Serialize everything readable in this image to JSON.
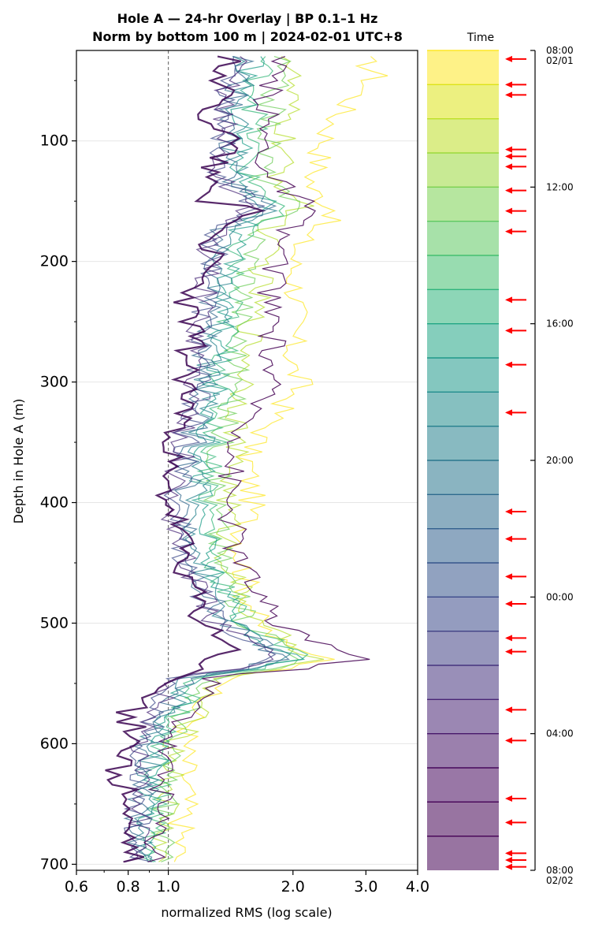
{
  "chart_data": {
    "type": "line",
    "title": "Hole A — 24-hr Overlay  |  BP 0.1–1 Hz",
    "subtitle": "Norm by bottom 100 m  |  2024-02-01 UTC+8",
    "xlabel": "normalized RMS  (log scale)",
    "ylabel": "Depth in Hole A (m)",
    "xscale": "log",
    "xlim": [
      0.6,
      4.0
    ],
    "ylim": [
      705,
      25
    ],
    "xticks": [
      "0.6",
      "0.8",
      "1.0",
      "2.0",
      "3.0",
      "4.0"
    ],
    "yticks": [
      "100",
      "200",
      "300",
      "400",
      "500",
      "600",
      "700"
    ],
    "grid": "horizontal",
    "reference_line_x": 1.0,
    "colorbar": {
      "label": "Time",
      "colormap": "viridis",
      "ticks": [
        {
          "label": "08:00",
          "label2": "02/01"
        },
        {
          "label": "12:00"
        },
        {
          "label": "16:00"
        },
        {
          "label": "20:00"
        },
        {
          "label": "00:00"
        },
        {
          "label": "04:00"
        },
        {
          "label": "08:00",
          "label2": "02/02"
        }
      ],
      "bands": 24,
      "arrow_hours": [
        0.25,
        1.0,
        1.3,
        2.9,
        3.1,
        3.4,
        4.1,
        4.7,
        5.3,
        7.3,
        8.2,
        9.2,
        10.6,
        13.5,
        14.3,
        15.4,
        16.2,
        17.2,
        17.6,
        19.3,
        20.2,
        21.9,
        22.6,
        23.5,
        23.7,
        23.9
      ]
    },
    "series": [
      {
        "name": "",
        "color": "#fde725",
        "profile": [
          [
            30,
            2.9
          ],
          [
            45,
            3.2
          ],
          [
            60,
            2.9
          ],
          [
            80,
            2.55
          ],
          [
            100,
            2.4
          ],
          [
            120,
            2.3
          ],
          [
            140,
            2.2
          ],
          [
            160,
            2.6
          ],
          [
            175,
            2.15
          ],
          [
            200,
            2.0
          ],
          [
            230,
            2.05
          ],
          [
            260,
            2.0
          ],
          [
            290,
            2.0
          ],
          [
            300,
            2.1
          ],
          [
            330,
            1.8
          ],
          [
            360,
            1.55
          ],
          [
            400,
            1.6
          ],
          [
            440,
            1.5
          ],
          [
            470,
            1.55
          ],
          [
            500,
            1.65
          ],
          [
            520,
            1.9
          ],
          [
            530,
            2.6
          ],
          [
            540,
            1.7
          ],
          [
            560,
            1.2
          ],
          [
            600,
            1.1
          ],
          [
            650,
            1.1
          ],
          [
            700,
            1.05
          ]
        ]
      },
      {
        "name": "",
        "color": "#b5de2b",
        "profile": [
          [
            30,
            2.0
          ],
          [
            60,
            1.95
          ],
          [
            100,
            1.9
          ],
          [
            130,
            1.85
          ],
          [
            155,
            2.1
          ],
          [
            175,
            1.75
          ],
          [
            200,
            1.7
          ],
          [
            250,
            1.6
          ],
          [
            300,
            1.55
          ],
          [
            350,
            1.45
          ],
          [
            400,
            1.4
          ],
          [
            450,
            1.4
          ],
          [
            500,
            1.6
          ],
          [
            530,
            2.3
          ],
          [
            545,
            1.3
          ],
          [
            600,
            1.05
          ],
          [
            650,
            1.0
          ],
          [
            700,
            0.95
          ]
        ]
      },
      {
        "name": "",
        "color": "#6ece58",
        "profile": [
          [
            30,
            1.85
          ],
          [
            60,
            1.8
          ],
          [
            100,
            1.75
          ],
          [
            130,
            1.7
          ],
          [
            155,
            2.0
          ],
          [
            175,
            1.65
          ],
          [
            200,
            1.6
          ],
          [
            250,
            1.5
          ],
          [
            300,
            1.45
          ],
          [
            350,
            1.35
          ],
          [
            400,
            1.3
          ],
          [
            450,
            1.35
          ],
          [
            500,
            1.55
          ],
          [
            530,
            2.2
          ],
          [
            545,
            1.25
          ],
          [
            600,
            1.0
          ],
          [
            650,
            1.0
          ],
          [
            700,
            0.95
          ]
        ]
      },
      {
        "name": "",
        "color": "#35b779",
        "profile": [
          [
            30,
            1.7
          ],
          [
            60,
            1.65
          ],
          [
            100,
            1.6
          ],
          [
            130,
            1.55
          ],
          [
            155,
            1.9
          ],
          [
            175,
            1.5
          ],
          [
            200,
            1.45
          ],
          [
            250,
            1.4
          ],
          [
            300,
            1.35
          ],
          [
            350,
            1.3
          ],
          [
            400,
            1.25
          ],
          [
            450,
            1.3
          ],
          [
            500,
            1.5
          ],
          [
            530,
            2.1
          ],
          [
            545,
            1.2
          ],
          [
            600,
            0.95
          ],
          [
            650,
            0.95
          ],
          [
            700,
            0.9
          ]
        ]
      },
      {
        "name": "",
        "color": "#1f9e89",
        "profile": [
          [
            30,
            1.6
          ],
          [
            60,
            1.55
          ],
          [
            100,
            1.5
          ],
          [
            130,
            1.5
          ],
          [
            155,
            1.8
          ],
          [
            175,
            1.45
          ],
          [
            200,
            1.4
          ],
          [
            250,
            1.35
          ],
          [
            300,
            1.3
          ],
          [
            350,
            1.25
          ],
          [
            400,
            1.2
          ],
          [
            450,
            1.25
          ],
          [
            500,
            1.45
          ],
          [
            530,
            2.0
          ],
          [
            545,
            1.15
          ],
          [
            600,
            0.95
          ],
          [
            650,
            0.9
          ],
          [
            700,
            0.9
          ]
        ]
      },
      {
        "name": "",
        "color": "#26828e",
        "profile": [
          [
            30,
            1.55
          ],
          [
            60,
            1.5
          ],
          [
            100,
            1.45
          ],
          [
            130,
            1.45
          ],
          [
            155,
            1.75
          ],
          [
            175,
            1.4
          ],
          [
            200,
            1.35
          ],
          [
            250,
            1.3
          ],
          [
            300,
            1.25
          ],
          [
            350,
            1.2
          ],
          [
            400,
            1.15
          ],
          [
            450,
            1.2
          ],
          [
            500,
            1.4
          ],
          [
            530,
            1.95
          ],
          [
            545,
            1.1
          ],
          [
            600,
            0.9
          ],
          [
            650,
            0.9
          ],
          [
            700,
            0.85
          ]
        ]
      },
      {
        "name": "",
        "color": "#31688e",
        "profile": [
          [
            30,
            1.5
          ],
          [
            60,
            1.45
          ],
          [
            100,
            1.4
          ],
          [
            130,
            1.4
          ],
          [
            155,
            1.7
          ],
          [
            175,
            1.35
          ],
          [
            200,
            1.3
          ],
          [
            250,
            1.25
          ],
          [
            300,
            1.2
          ],
          [
            350,
            1.15
          ],
          [
            400,
            1.1
          ],
          [
            450,
            1.15
          ],
          [
            500,
            1.35
          ],
          [
            530,
            1.9
          ],
          [
            545,
            1.1
          ],
          [
            600,
            0.9
          ],
          [
            650,
            0.85
          ],
          [
            700,
            0.85
          ]
        ]
      },
      {
        "name": "",
        "color": "#3e4989",
        "profile": [
          [
            30,
            1.45
          ],
          [
            60,
            1.4
          ],
          [
            100,
            1.35
          ],
          [
            130,
            1.35
          ],
          [
            155,
            1.65
          ],
          [
            175,
            1.3
          ],
          [
            200,
            1.3
          ],
          [
            250,
            1.2
          ],
          [
            300,
            1.2
          ],
          [
            350,
            1.1
          ],
          [
            400,
            1.05
          ],
          [
            450,
            1.1
          ],
          [
            500,
            1.3
          ],
          [
            530,
            1.85
          ],
          [
            545,
            1.05
          ],
          [
            600,
            0.85
          ],
          [
            650,
            0.85
          ],
          [
            700,
            0.85
          ]
        ]
      },
      {
        "name": "",
        "color": "#482878",
        "profile": [
          [
            30,
            1.45
          ],
          [
            60,
            1.4
          ],
          [
            100,
            1.35
          ],
          [
            130,
            1.3
          ],
          [
            155,
            1.6
          ],
          [
            175,
            1.3
          ],
          [
            200,
            1.25
          ],
          [
            250,
            1.2
          ],
          [
            300,
            1.15
          ],
          [
            350,
            1.1
          ],
          [
            400,
            1.0
          ],
          [
            450,
            1.1
          ],
          [
            500,
            1.3
          ],
          [
            530,
            1.8
          ],
          [
            545,
            1.05
          ],
          [
            600,
            0.85
          ],
          [
            650,
            0.85
          ],
          [
            700,
            0.85
          ]
        ]
      },
      {
        "name": "",
        "color": "#440154",
        "profile": [
          [
            30,
            1.8
          ],
          [
            60,
            1.75
          ],
          [
            100,
            1.7
          ],
          [
            130,
            1.75
          ],
          [
            155,
            2.2
          ],
          [
            175,
            1.9
          ],
          [
            200,
            1.85
          ],
          [
            230,
            1.75
          ],
          [
            260,
            1.8
          ],
          [
            300,
            1.75
          ],
          [
            330,
            1.6
          ],
          [
            360,
            1.45
          ],
          [
            400,
            1.4
          ],
          [
            450,
            1.5
          ],
          [
            500,
            1.8
          ],
          [
            530,
            2.9
          ],
          [
            545,
            1.3
          ],
          [
            600,
            1.0
          ],
          [
            650,
            0.95
          ],
          [
            700,
            0.95
          ]
        ]
      },
      {
        "name": "",
        "color": "#3b0451",
        "profile": [
          [
            30,
            1.4
          ],
          [
            60,
            1.35
          ],
          [
            80,
            1.25
          ],
          [
            100,
            1.45
          ],
          [
            120,
            1.3
          ],
          [
            150,
            1.2
          ],
          [
            155,
            1.75
          ],
          [
            175,
            1.3
          ],
          [
            200,
            1.25
          ],
          [
            235,
            1.1
          ],
          [
            260,
            1.15
          ],
          [
            300,
            1.1
          ],
          [
            330,
            1.1
          ],
          [
            365,
            1.0
          ],
          [
            380,
            0.95
          ],
          [
            400,
            1.0
          ],
          [
            420,
            1.05
          ],
          [
            450,
            1.1
          ],
          [
            480,
            1.15
          ],
          [
            500,
            1.2
          ],
          [
            520,
            1.45
          ],
          [
            540,
            1.1
          ],
          [
            560,
            0.9
          ],
          [
            575,
            0.8
          ],
          [
            600,
            0.85
          ],
          [
            625,
            0.72
          ],
          [
            640,
            0.8
          ],
          [
            660,
            0.78
          ],
          [
            680,
            0.8
          ],
          [
            700,
            0.82
          ]
        ]
      }
    ]
  }
}
